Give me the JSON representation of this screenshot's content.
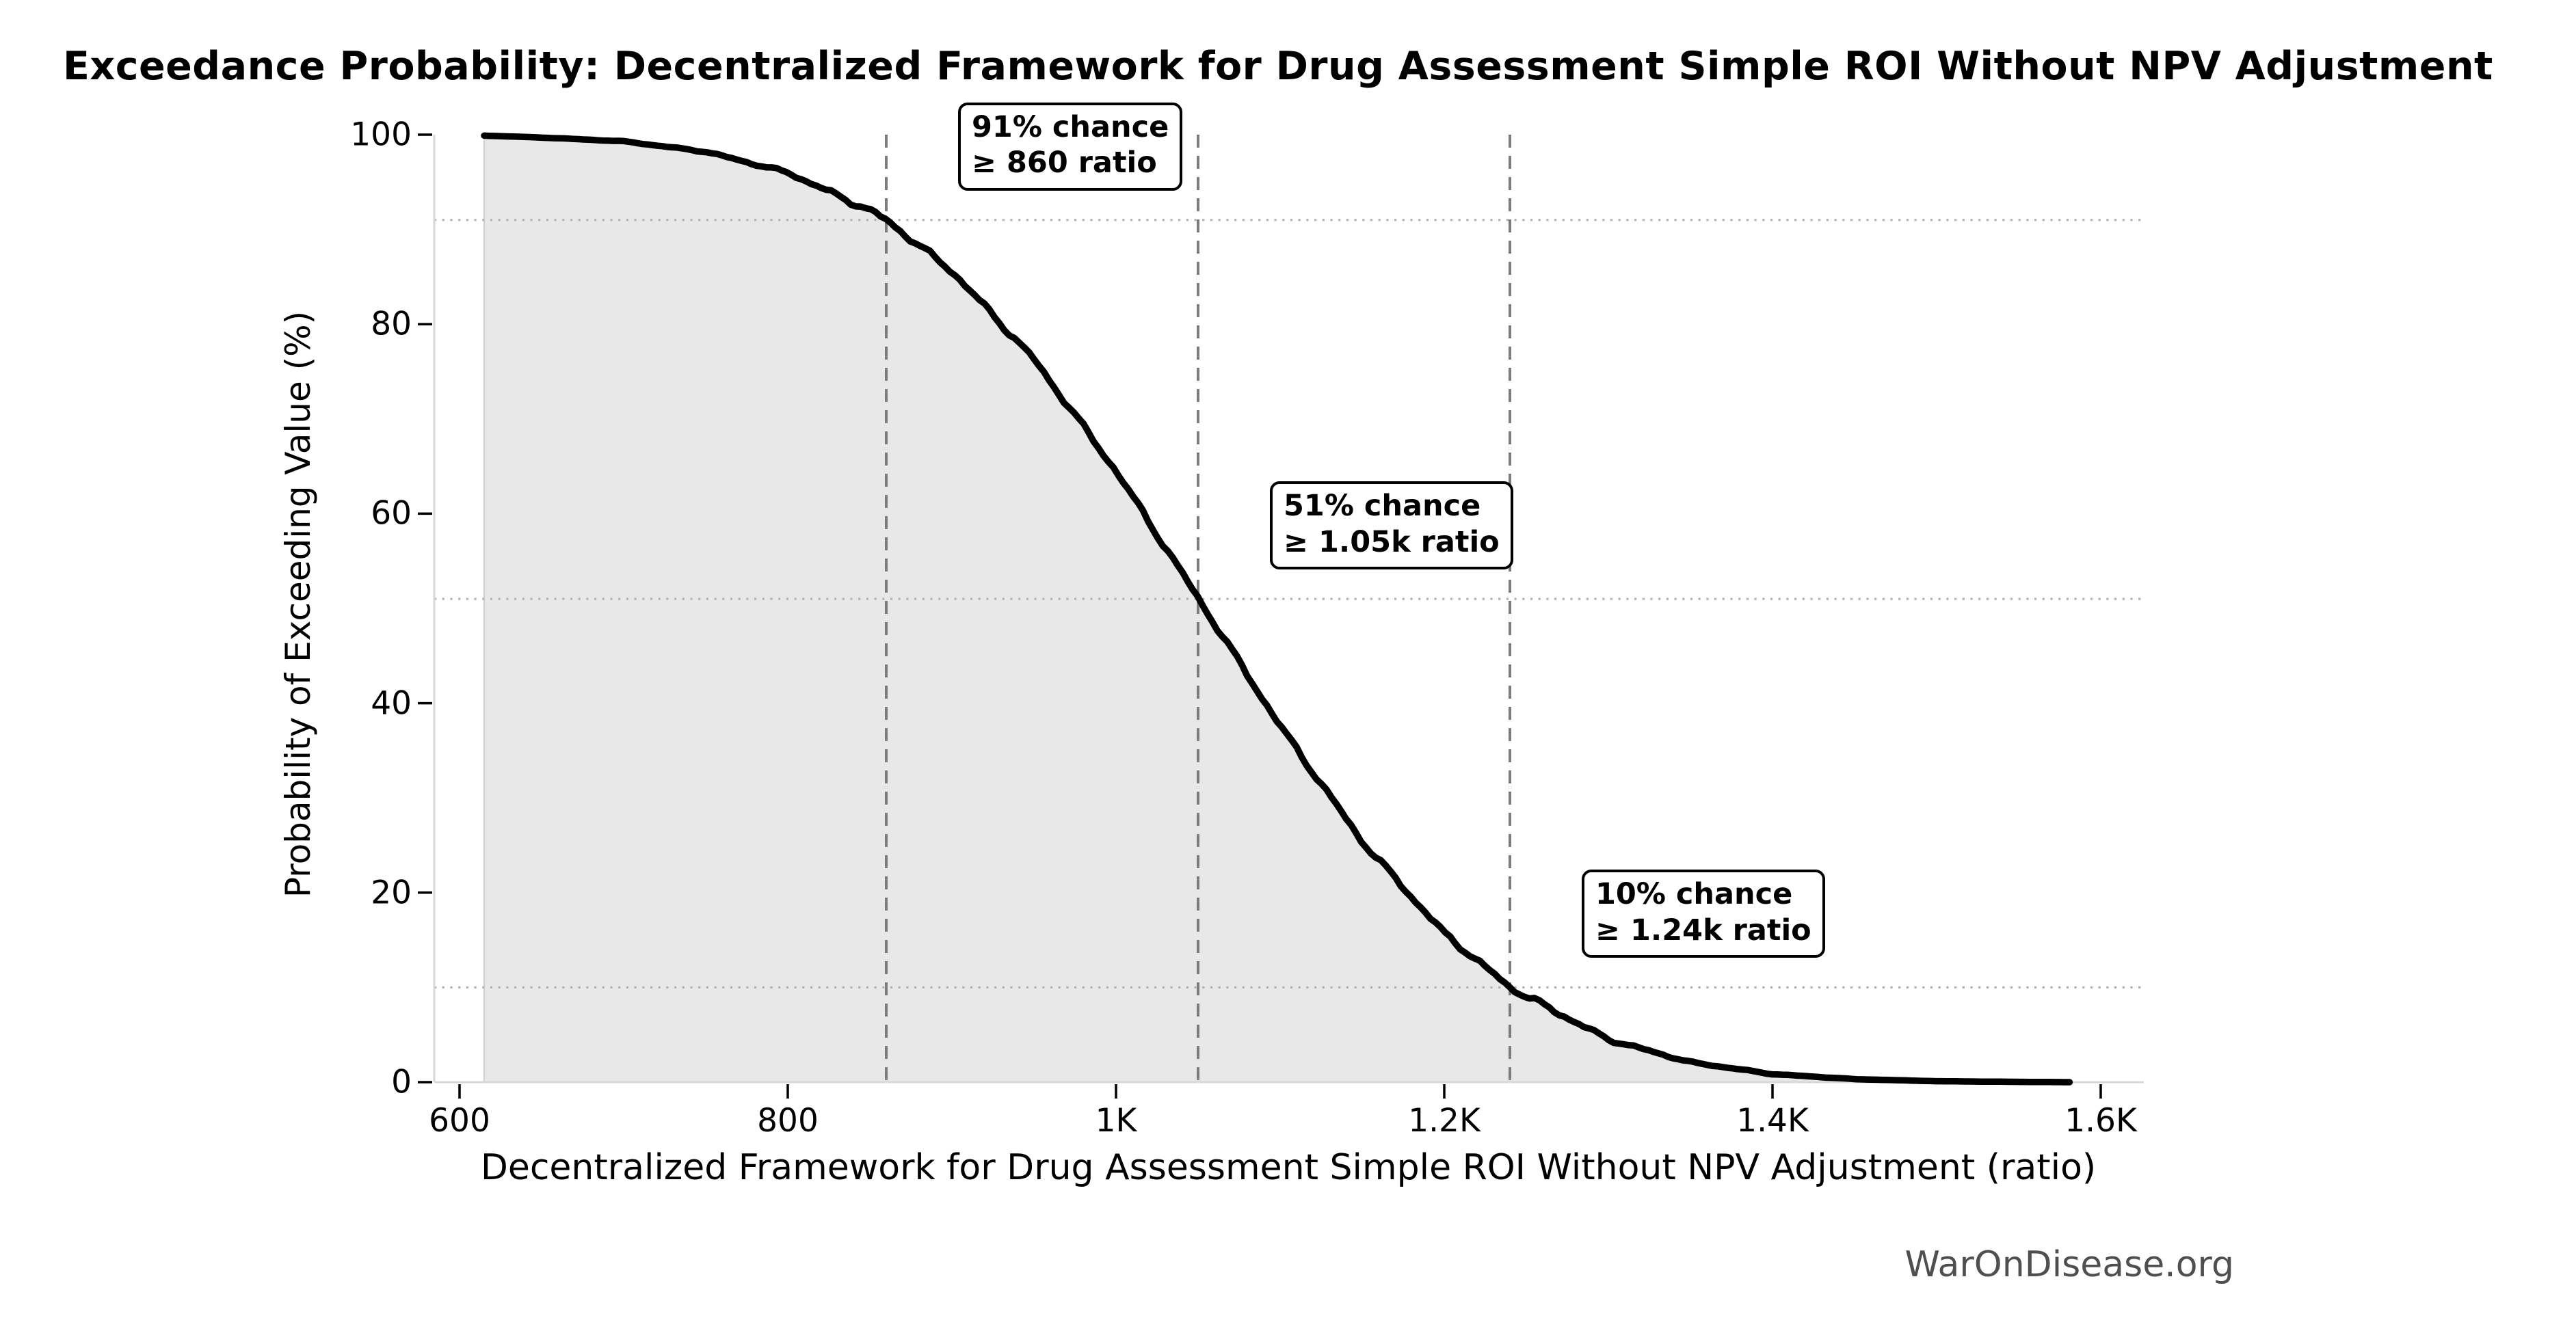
{
  "watermark": "WarOnDisease.org",
  "chart_data": {
    "type": "area",
    "title": "Exceedance Probability: Decentralized Framework for Drug Assessment Simple ROI Without NPV Adjustment",
    "xlabel": "Decentralized Framework for Drug Assessment Simple ROI Without NPV Adjustment (ratio)",
    "ylabel": "Probability of Exceeding Value (%)",
    "xlim": [
      588,
      1630
    ],
    "ylim": [
      0,
      100
    ],
    "grid": "dotted horizontal lines at annotated probabilities",
    "legend_position": "none",
    "x_ticks": [
      {
        "value": 600,
        "label": "600"
      },
      {
        "value": 800,
        "label": "800"
      },
      {
        "value": 1000,
        "label": "1K"
      },
      {
        "value": 1200,
        "label": "1.2K"
      },
      {
        "value": 1400,
        "label": "1.4K"
      },
      {
        "value": 1600,
        "label": "1.6K"
      }
    ],
    "y_ticks": [
      {
        "value": 0,
        "label": "0"
      },
      {
        "value": 20,
        "label": "20"
      },
      {
        "value": 40,
        "label": "40"
      },
      {
        "value": 60,
        "label": "60"
      },
      {
        "value": 80,
        "label": "80"
      },
      {
        "value": 100,
        "label": "100"
      }
    ],
    "points": [
      [
        615,
        99.9
      ],
      [
        650,
        99.7
      ],
      [
        700,
        99.3
      ],
      [
        750,
        98.2
      ],
      [
        800,
        96.0
      ],
      [
        850,
        92.0
      ],
      [
        860,
        91.0
      ],
      [
        900,
        85.6
      ],
      [
        950,
        76.3
      ],
      [
        1000,
        64.5
      ],
      [
        1050,
        51.1
      ],
      [
        1100,
        37.6
      ],
      [
        1150,
        25.4
      ],
      [
        1200,
        15.7
      ],
      [
        1240,
        10.0
      ],
      [
        1300,
        4.5
      ],
      [
        1350,
        2.1
      ],
      [
        1400,
        0.85
      ],
      [
        1450,
        0.32
      ],
      [
        1500,
        0.1
      ],
      [
        1550,
        0.03
      ],
      [
        1581,
        0.0
      ]
    ],
    "annotations": [
      {
        "prob_pct": 91,
        "threshold": 860,
        "line1": "91% chance",
        "line2": "≥ 860 ratio"
      },
      {
        "prob_pct": 51,
        "threshold": 1050,
        "line1": "51% chance",
        "line2": "≥ 1.05k ratio"
      },
      {
        "prob_pct": 10,
        "threshold": 1240,
        "line1": "10% chance",
        "line2": "≥ 1.24k ratio"
      }
    ],
    "colors": {
      "curve": "#000000",
      "fill": "#e8e8e8",
      "fill_edge": "#d4d4d4",
      "dashed_threshold": "#7c7c7c",
      "dotted_grid": "#b3b3b3",
      "spine": "#d8d8d8",
      "tick": "#000000",
      "text": "#000000",
      "watermark_text": "#4f4f4f"
    }
  }
}
